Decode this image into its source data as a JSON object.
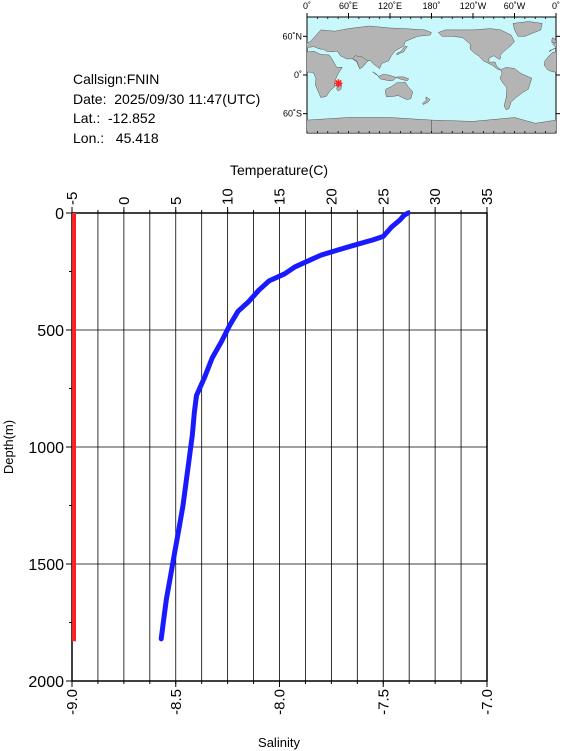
{
  "info": {
    "callsign": "Callsign:FNIN",
    "date": "Date:  2025/09/30 11:47(UTC)",
    "lat": "Lat.:  -12.852",
    "lon": "Lon.:   45.418"
  },
  "map": {
    "top_ticks": [
      "0˚",
      "60˚E",
      "120˚E",
      "180˚",
      "120˚W",
      "60˚W",
      "0˚"
    ],
    "lat_ticks": [
      "60˚N",
      "0˚",
      "60˚S"
    ],
    "ocean_color": "#c8f8fc",
    "land_color": "#b4b4b4",
    "marker_color": "#ff2020",
    "marker": {
      "lat": -12.852,
      "lon": 45.418
    }
  },
  "chart_data": {
    "type": "line",
    "x_top_label": "Temperature(C)",
    "x_bottom_label": "Salinity",
    "ylabel": "Depth(m)",
    "temp_range": [
      -5,
      35
    ],
    "sal_range": [
      -9.0,
      -7.0
    ],
    "depth_range": [
      0,
      2000
    ],
    "temp_ticks": [
      "-5",
      "0",
      "5",
      "10",
      "15",
      "20",
      "25",
      "30",
      "35"
    ],
    "sal_ticks": [
      "-9.0",
      "-8.5",
      "-8.0",
      "-7.5",
      "-7.0"
    ],
    "depth_ticks": [
      "0",
      "500",
      "1000",
      "1500",
      "2000"
    ],
    "grid": true,
    "series": [
      {
        "color": "#1a1aff",
        "depth": [
          0,
          10,
          30,
          60,
          100,
          115,
          140,
          160,
          180,
          200,
          230,
          260,
          290,
          330,
          380,
          420,
          480,
          550,
          620,
          700,
          780,
          850,
          950,
          1050,
          1150,
          1250,
          1350,
          1450,
          1550,
          1650,
          1750,
          1820
        ],
        "temperature": [
          27.4,
          27.0,
          26.6,
          25.8,
          25.0,
          24.0,
          22.0,
          20.5,
          19.0,
          18.0,
          16.5,
          15.5,
          14.0,
          13.0,
          12.0,
          11.0,
          10.2,
          9.4,
          8.5,
          7.8,
          7.0,
          6.8,
          6.6,
          6.3,
          6.0,
          5.7,
          5.3,
          4.9,
          4.5,
          4.1,
          3.8,
          3.6
        ]
      },
      {
        "color": "#ff2020",
        "depth": [
          0,
          1830
        ],
        "salinity": [
          -9.0,
          -9.0
        ]
      }
    ]
  }
}
